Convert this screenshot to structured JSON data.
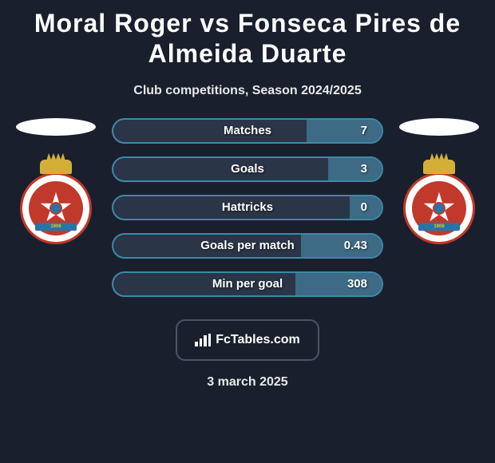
{
  "header": {
    "title": "Moral Roger vs Fonseca Pires de Almeida Duarte",
    "subtitle": "Club competitions, Season 2024/2025"
  },
  "club_badge": {
    "ribbon_text": "1906"
  },
  "stats": [
    {
      "label": "Matches",
      "value": "7",
      "progress_pct": 28
    },
    {
      "label": "Goals",
      "value": "3",
      "progress_pct": 20
    },
    {
      "label": "Hattricks",
      "value": "0",
      "progress_pct": 12
    },
    {
      "label": "Goals per match",
      "value": "0.43",
      "progress_pct": 30
    },
    {
      "label": "Min per goal",
      "value": "308",
      "progress_pct": 32
    }
  ],
  "brand": {
    "text": "FcTables.com"
  },
  "date": "3 march 2025",
  "colors": {
    "background": "#1a1f2e",
    "bar_border": "#3d8aa6",
    "bar_bg": "#2a3547",
    "bar_progress": "#3d6a85",
    "shield_red": "#c0392b",
    "shield_blue": "#2874a6",
    "crown_gold": "#d4af37"
  }
}
